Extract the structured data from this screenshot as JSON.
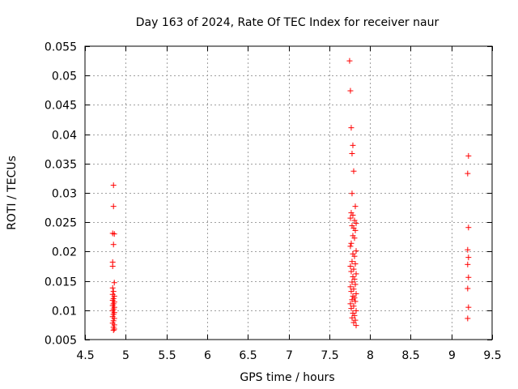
{
  "chart_data": {
    "type": "scatter",
    "title": "Day 163 of 2024, Rate Of TEC Index for receiver naur",
    "xlabel": "GPS time / hours",
    "ylabel": "ROTI / TECUs",
    "xlim": [
      4.5,
      9.5
    ],
    "ylim": [
      0.005,
      0.055
    ],
    "xticks": [
      4.5,
      5,
      5.5,
      6,
      6.5,
      7,
      7.5,
      8,
      8.5,
      9,
      9.5
    ],
    "yticks": [
      0.005,
      0.01,
      0.015,
      0.02,
      0.025,
      0.03,
      0.035,
      0.04,
      0.045,
      0.05,
      0.055
    ],
    "xtick_labels": [
      "4.5",
      "5",
      "5.5",
      "6",
      "6.5",
      "7",
      "7.5",
      "8",
      "8.5",
      "9",
      "9.5"
    ],
    "ytick_labels": [
      "0.005",
      "0.01",
      "0.015",
      "0.02",
      "0.025",
      "0.03",
      "0.035",
      "0.04",
      "0.045",
      "0.05",
      "0.055"
    ],
    "grid": true,
    "marker": "+",
    "color": "#ff0000",
    "points": [
      {
        "x": 4.85,
        "y": 0.0313
      },
      {
        "x": 4.85,
        "y": 0.0277
      },
      {
        "x": 4.84,
        "y": 0.0231
      },
      {
        "x": 4.86,
        "y": 0.023
      },
      {
        "x": 4.85,
        "y": 0.0212
      },
      {
        "x": 4.84,
        "y": 0.0182
      },
      {
        "x": 4.84,
        "y": 0.0175
      },
      {
        "x": 4.86,
        "y": 0.0147
      },
      {
        "x": 4.84,
        "y": 0.0138
      },
      {
        "x": 4.85,
        "y": 0.0132
      },
      {
        "x": 4.84,
        "y": 0.0127
      },
      {
        "x": 4.86,
        "y": 0.0124
      },
      {
        "x": 4.85,
        "y": 0.012
      },
      {
        "x": 4.84,
        "y": 0.0117
      },
      {
        "x": 4.86,
        "y": 0.0114
      },
      {
        "x": 4.85,
        "y": 0.0111
      },
      {
        "x": 4.84,
        "y": 0.0108
      },
      {
        "x": 4.86,
        "y": 0.0105
      },
      {
        "x": 4.85,
        "y": 0.0102
      },
      {
        "x": 4.84,
        "y": 0.0099
      },
      {
        "x": 4.86,
        "y": 0.0096
      },
      {
        "x": 4.85,
        "y": 0.0093
      },
      {
        "x": 4.84,
        "y": 0.0089
      },
      {
        "x": 4.86,
        "y": 0.0086
      },
      {
        "x": 4.85,
        "y": 0.0082
      },
      {
        "x": 4.84,
        "y": 0.0078
      },
      {
        "x": 4.86,
        "y": 0.0075
      },
      {
        "x": 4.85,
        "y": 0.0071
      },
      {
        "x": 4.86,
        "y": 0.0068
      },
      {
        "x": 4.85,
        "y": 0.0066
      },
      {
        "x": 7.75,
        "y": 0.0525
      },
      {
        "x": 7.76,
        "y": 0.0474
      },
      {
        "x": 7.77,
        "y": 0.0411
      },
      {
        "x": 7.79,
        "y": 0.0381
      },
      {
        "x": 7.78,
        "y": 0.0367
      },
      {
        "x": 7.8,
        "y": 0.0337
      },
      {
        "x": 7.78,
        "y": 0.0299
      },
      {
        "x": 7.82,
        "y": 0.0277
      },
      {
        "x": 7.77,
        "y": 0.0266
      },
      {
        "x": 7.79,
        "y": 0.0262
      },
      {
        "x": 7.76,
        "y": 0.0257
      },
      {
        "x": 7.81,
        "y": 0.0253
      },
      {
        "x": 7.83,
        "y": 0.0248
      },
      {
        "x": 7.78,
        "y": 0.0244
      },
      {
        "x": 7.8,
        "y": 0.024
      },
      {
        "x": 7.82,
        "y": 0.0236
      },
      {
        "x": 7.79,
        "y": 0.0227
      },
      {
        "x": 7.81,
        "y": 0.0223
      },
      {
        "x": 7.77,
        "y": 0.0214
      },
      {
        "x": 7.76,
        "y": 0.0209
      },
      {
        "x": 7.83,
        "y": 0.0201
      },
      {
        "x": 7.79,
        "y": 0.0196
      },
      {
        "x": 7.81,
        "y": 0.0192
      },
      {
        "x": 7.78,
        "y": 0.0183
      },
      {
        "x": 7.82,
        "y": 0.0179
      },
      {
        "x": 7.76,
        "y": 0.0175
      },
      {
        "x": 7.8,
        "y": 0.017
      },
      {
        "x": 7.77,
        "y": 0.0166
      },
      {
        "x": 7.83,
        "y": 0.0162
      },
      {
        "x": 7.79,
        "y": 0.0157
      },
      {
        "x": 7.81,
        "y": 0.0153
      },
      {
        "x": 7.78,
        "y": 0.0148
      },
      {
        "x": 7.82,
        "y": 0.0144
      },
      {
        "x": 7.76,
        "y": 0.014
      },
      {
        "x": 7.8,
        "y": 0.0136
      },
      {
        "x": 7.77,
        "y": 0.0132
      },
      {
        "x": 7.83,
        "y": 0.0128
      },
      {
        "x": 7.79,
        "y": 0.0124
      },
      {
        "x": 7.81,
        "y": 0.0121
      },
      {
        "x": 7.78,
        "y": 0.0118
      },
      {
        "x": 7.82,
        "y": 0.0115
      },
      {
        "x": 7.76,
        "y": 0.0111
      },
      {
        "x": 7.8,
        "y": 0.0107
      },
      {
        "x": 7.77,
        "y": 0.0103
      },
      {
        "x": 7.83,
        "y": 0.0099
      },
      {
        "x": 7.79,
        "y": 0.0095
      },
      {
        "x": 7.81,
        "y": 0.0091
      },
      {
        "x": 7.78,
        "y": 0.0087
      },
      {
        "x": 7.82,
        "y": 0.0083
      },
      {
        "x": 7.8,
        "y": 0.0079
      },
      {
        "x": 7.83,
        "y": 0.0074
      },
      {
        "x": 9.21,
        "y": 0.0363
      },
      {
        "x": 9.2,
        "y": 0.0333
      },
      {
        "x": 9.21,
        "y": 0.0241
      },
      {
        "x": 9.2,
        "y": 0.0203
      },
      {
        "x": 9.21,
        "y": 0.019
      },
      {
        "x": 9.2,
        "y": 0.0178
      },
      {
        "x": 9.21,
        "y": 0.0156
      },
      {
        "x": 9.2,
        "y": 0.0137
      },
      {
        "x": 9.21,
        "y": 0.0105
      },
      {
        "x": 9.2,
        "y": 0.0086
      }
    ]
  }
}
